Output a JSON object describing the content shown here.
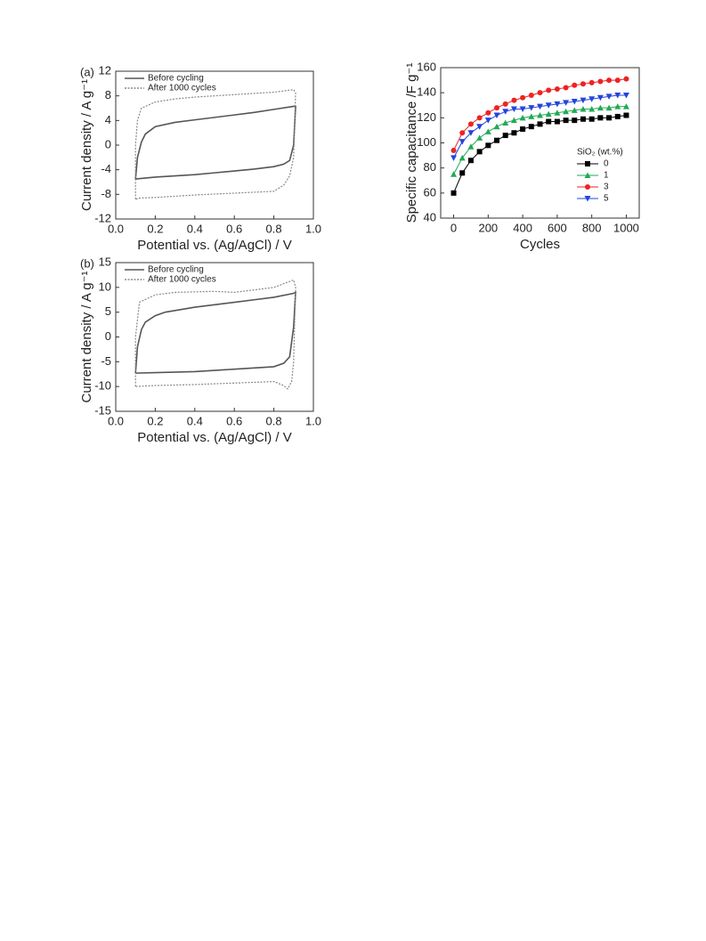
{
  "chart_data": [
    {
      "type": "line",
      "panel_label": "(a)",
      "x_label": "Potential  vs. (Ag/AgCl) / V",
      "y_label": "Current density  / A g⁻¹",
      "xlim": [
        0,
        1
      ],
      "ylim": [
        -12,
        12
      ],
      "xticks": [
        {
          "value": 0,
          "label": "0.0"
        },
        0.2,
        0.4,
        0.6,
        0.8,
        {
          "value": 1,
          "label": "1.0"
        }
      ],
      "yticks": [
        -12,
        -8,
        -4,
        0,
        4,
        8,
        12
      ],
      "legend": "upper-left",
      "series": [
        {
          "name": "Before cycling",
          "color": "#555555",
          "linestyle": "solid",
          "x": [
            0.1,
            0.11,
            0.13,
            0.15,
            0.2,
            0.3,
            0.4,
            0.5,
            0.6,
            0.7,
            0.8,
            0.9,
            0.91,
            0.9,
            0.88,
            0.85,
            0.8,
            0.7,
            0.6,
            0.5,
            0.4,
            0.3,
            0.2,
            0.1
          ],
          "values": [
            -5.5,
            -2,
            0.5,
            1.8,
            3,
            3.7,
            4.1,
            4.5,
            4.9,
            5.3,
            5.8,
            6.3,
            6.3,
            0,
            -2.5,
            -3.1,
            -3.5,
            -3.9,
            -4.2,
            -4.5,
            -4.8,
            -5,
            -5.2,
            -5.5
          ]
        },
        {
          "name": "After 1000 cycles",
          "color": "#888888",
          "linestyle": "dotted",
          "x": [
            0.1,
            0.1,
            0.11,
            0.13,
            0.2,
            0.3,
            0.4,
            0.5,
            0.6,
            0.7,
            0.8,
            0.9,
            0.91,
            0.9,
            0.88,
            0.85,
            0.8,
            0.6,
            0.4,
            0.2,
            0.12,
            0.1
          ],
          "values": [
            -8.8,
            0,
            4,
            6,
            7,
            7.5,
            7.8,
            8,
            8.2,
            8.4,
            8.6,
            9,
            8.5,
            -2,
            -5,
            -6.5,
            -7.5,
            -7.8,
            -8.1,
            -8.5,
            -8.6,
            -8.8
          ]
        }
      ]
    },
    {
      "type": "line",
      "panel_label": "(b)",
      "x_label": "Potential  vs. (Ag/AgCl) / V",
      "y_label": "Current density  / A g⁻¹",
      "xlim": [
        0,
        1
      ],
      "ylim": [
        -15,
        15
      ],
      "xticks": [
        {
          "value": 0,
          "label": "0.0"
        },
        0.2,
        0.4,
        0.6,
        0.8,
        {
          "value": 1,
          "label": "1.0"
        }
      ],
      "yticks": [
        -15,
        -10,
        -5,
        0,
        5,
        10,
        15
      ],
      "legend": "upper-left",
      "series": [
        {
          "name": "Before cycling",
          "color": "#555555",
          "linestyle": "solid",
          "x": [
            0.1,
            0.11,
            0.13,
            0.15,
            0.2,
            0.25,
            0.4,
            0.5,
            0.6,
            0.7,
            0.8,
            0.9,
            0.91,
            0.9,
            0.88,
            0.85,
            0.8,
            0.6,
            0.4,
            0.2,
            0.1
          ],
          "values": [
            -7.3,
            -2,
            1.5,
            3,
            4.3,
            5,
            6,
            6.5,
            7,
            7.5,
            8,
            8.8,
            9,
            2,
            -4,
            -5.3,
            -6,
            -6.5,
            -7,
            -7.2,
            -7.3
          ]
        },
        {
          "name": "After 1000 cycles",
          "color": "#888888",
          "linestyle": "dotted",
          "x": [
            0.1,
            0.1,
            0.12,
            0.2,
            0.3,
            0.5,
            0.6,
            0.7,
            0.8,
            0.9,
            0.91,
            0.9,
            0.89,
            0.87,
            0.85,
            0.8,
            0.6,
            0.4,
            0.2,
            0.1
          ],
          "values": [
            -10,
            0,
            7,
            8.5,
            9,
            9.2,
            9,
            9.5,
            10,
            11.5,
            10,
            -5,
            -9,
            -10.5,
            -9.8,
            -9,
            -9.3,
            -9.6,
            -9.8,
            -10
          ]
        }
      ]
    },
    {
      "type": "line-marker",
      "x_label": "Cycles",
      "y_label": "Specific capacitance /F g⁻¹",
      "legend_title": "SiO₂ (wt.%)",
      "legend": "center-right",
      "xlim": [
        -75,
        1075
      ],
      "ylim": [
        40,
        160
      ],
      "xticks": [
        0,
        200,
        400,
        600,
        800,
        1000
      ],
      "yticks": [
        40,
        60,
        80,
        100,
        120,
        140,
        160
      ],
      "x": [
        0,
        50,
        100,
        150,
        200,
        250,
        300,
        350,
        400,
        450,
        500,
        550,
        600,
        650,
        700,
        750,
        800,
        850,
        900,
        950,
        1000
      ],
      "series": [
        {
          "name": "0",
          "color": "#000000",
          "marker": "square",
          "values": [
            60,
            76,
            86,
            93,
            98,
            102,
            106,
            108,
            111,
            113,
            115,
            117,
            117,
            118,
            118,
            119,
            119,
            120,
            120,
            121,
            122
          ]
        },
        {
          "name": "1",
          "color": "#22aa55",
          "marker": "triangle-up",
          "values": [
            75,
            88,
            97,
            104,
            109,
            113,
            116,
            118,
            120,
            121,
            122,
            123,
            124,
            125,
            126,
            127,
            127,
            128,
            128,
            129,
            129
          ]
        },
        {
          "name": "3",
          "color": "#ee2222",
          "marker": "circle",
          "values": [
            94,
            108,
            115,
            120,
            124,
            128,
            131,
            134,
            136,
            138,
            140,
            142,
            143,
            144,
            146,
            147,
            148,
            149,
            150,
            150,
            151
          ]
        },
        {
          "name": "5",
          "color": "#2244dd",
          "marker": "triangle-down",
          "values": [
            88,
            101,
            108,
            113,
            118,
            122,
            125,
            127,
            127,
            128,
            129,
            130,
            131,
            132,
            133,
            134,
            135,
            136,
            137,
            138,
            138
          ]
        }
      ]
    }
  ]
}
